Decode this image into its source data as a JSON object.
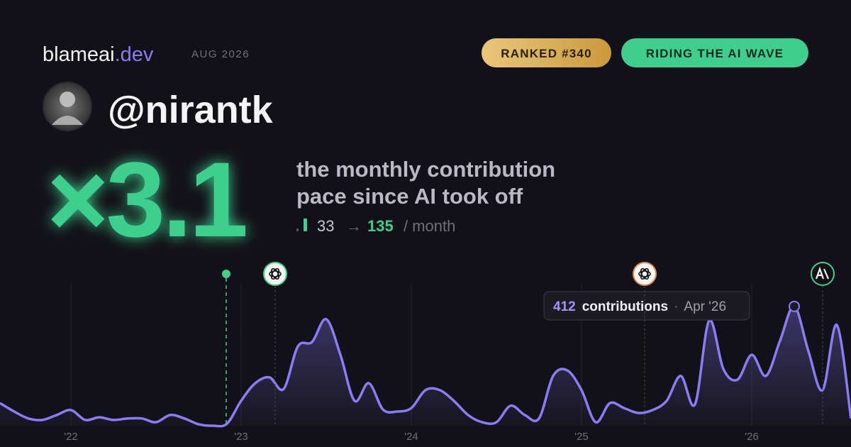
{
  "header": {
    "brand": "blameai",
    "brand_suffix": ".dev",
    "date": "AUG 2026",
    "badges": [
      "RANKED #340",
      "RIDING THE AI WAVE"
    ],
    "handle": "@nirantk"
  },
  "headline": {
    "multiplier": "×3.1",
    "description": [
      "the monthly contribution",
      "pace since AI took off"
    ],
    "before": "33",
    "arrow": "→",
    "after": "135",
    "unit": "/ month"
  },
  "chart_data": {
    "type": "line",
    "color": "#8b7cf6",
    "ylim": [
      0,
      490
    ],
    "categories": [
      null,
      null,
      null,
      null,
      null,
      "'22",
      null,
      null,
      null,
      null,
      null,
      null,
      null,
      null,
      null,
      null,
      null,
      "'23",
      null,
      null,
      null,
      null,
      null,
      null,
      null,
      null,
      null,
      null,
      null,
      "'24",
      null,
      null,
      null,
      null,
      null,
      null,
      null,
      null,
      null,
      null,
      null,
      "'25",
      null,
      null,
      null,
      null,
      null,
      null,
      null,
      null,
      null,
      null,
      null,
      "'26",
      null,
      null,
      null,
      null,
      null,
      null,
      null
    ],
    "values": [
      78,
      49,
      25,
      20,
      37,
      54,
      20,
      29,
      20,
      25,
      25,
      12,
      37,
      25,
      5,
      0,
      7,
      86,
      147,
      167,
      127,
      274,
      289,
      368,
      245,
      86,
      147,
      56,
      49,
      61,
      123,
      123,
      86,
      37,
      12,
      12,
      69,
      37,
      25,
      172,
      191,
      123,
      12,
      78,
      61,
      44,
      54,
      86,
      172,
      74,
      363,
      196,
      159,
      245,
      172,
      294,
      412,
      257,
      123,
      348,
      25
    ],
    "tooltip": {
      "label": "contributions",
      "separator": "·",
      "date": "Apr '26"
    }
  }
}
